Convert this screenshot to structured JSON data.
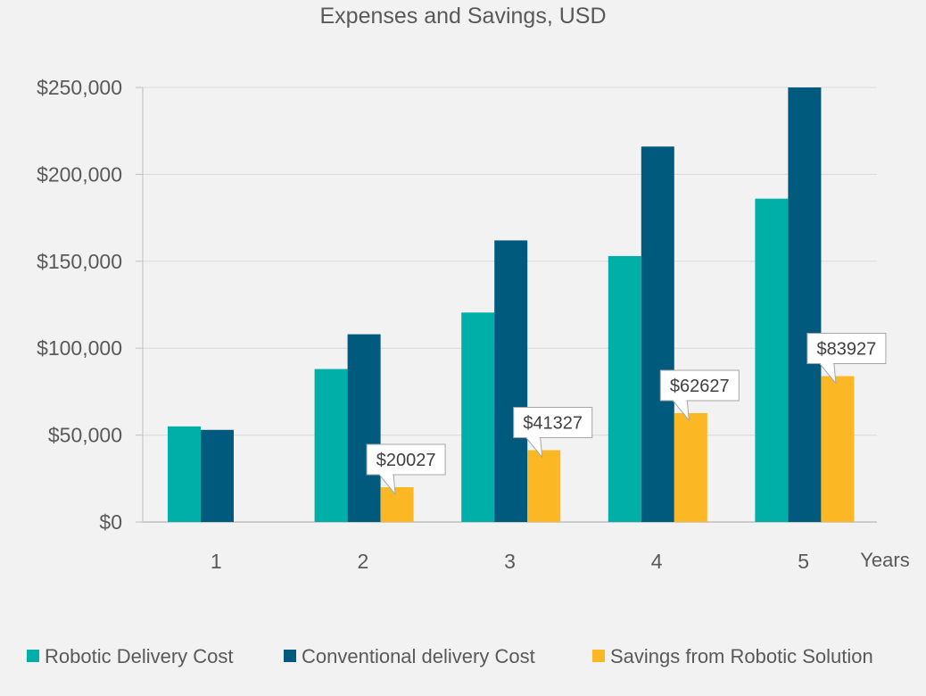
{
  "chart_data": {
    "type": "bar",
    "title": "Expenses and Savings, USD",
    "xlabel": "Years",
    "ylabel": "",
    "categories": [
      "1",
      "2",
      "3",
      "4",
      "5"
    ],
    "ylim": [
      0,
      250000
    ],
    "yticks": [
      0,
      50000,
      100000,
      150000,
      200000,
      250000
    ],
    "ytick_labels": [
      "$0",
      "$50,000",
      "$100,000",
      "$150,000",
      "$200,000",
      "$250,000"
    ],
    "grid": true,
    "legend_position": "bottom",
    "series": [
      {
        "name": "Robotic Delivery Cost",
        "color": "#00b0a8",
        "values": [
          55000,
          88000,
          120500,
          153000,
          186000
        ]
      },
      {
        "name": "Conventional delivery Cost",
        "color": "#005a7e",
        "values": [
          53000,
          108000,
          162000,
          216000,
          250000
        ]
      },
      {
        "name": "Savings from Robotic Solution",
        "color": "#fbb724",
        "values": [
          null,
          20027,
          41327,
          62627,
          83927
        ],
        "data_labels": [
          null,
          "$20027",
          "$41327",
          "$62627",
          "$83927"
        ]
      }
    ]
  }
}
